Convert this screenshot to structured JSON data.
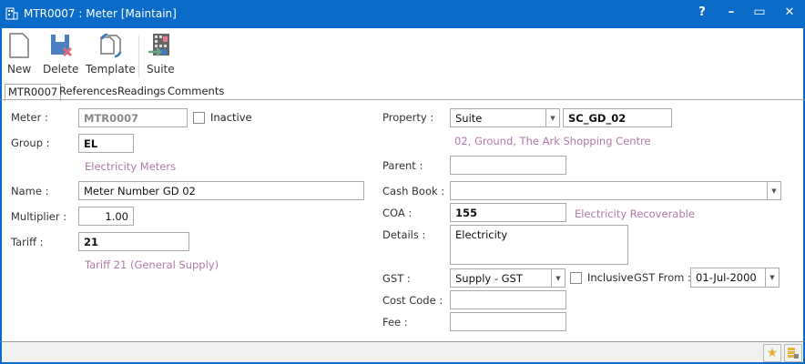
{
  "window": {
    "title": "MTR0007 : Meter [Maintain]",
    "help": "?",
    "minimize": "–",
    "maximize": "▭",
    "close": "✕",
    "accent": "#0a6bc8"
  },
  "toolbar": {
    "new": "New",
    "delete": "Delete",
    "template": "Template",
    "suite": "Suite"
  },
  "tabs": [
    "MTR0007",
    "References",
    "Readings",
    "Comments"
  ],
  "left": {
    "meter_label": "Meter :",
    "meter_value": "MTR0007",
    "inactive_label": "Inactive",
    "group_label": "Group :",
    "group_value": "EL",
    "group_desc": "Electricity Meters",
    "name_label": "Name :",
    "name_value": "Meter Number GD 02",
    "multiplier_label": "Multiplier :",
    "multiplier_value": "1.00",
    "tariff_label": "Tariff :",
    "tariff_value": "21",
    "tariff_desc": "Tariff 21 (General Supply)"
  },
  "right": {
    "property_label": "Property :",
    "property_type": "Suite",
    "property_code": "SC_GD_02",
    "property_desc": "02, Ground, The Ark Shopping Centre",
    "parent_label": "Parent :",
    "parent_value": "",
    "cashbook_label": "Cash Book :",
    "cashbook_value": "",
    "coa_label": "COA :",
    "coa_value": "155",
    "coa_desc": "Electricity Recoverable",
    "details_label": "Details :",
    "details_value": "Electricity",
    "gst_label": "GST :",
    "gst_value": "Supply - GST",
    "inclusive_label": "Inclusive",
    "gst_from_label": "GST From :",
    "gst_from_value": "01-Jul-2000",
    "costcode_label": "Cost Code :",
    "costcode_value": "",
    "fee_label": "Fee :",
    "fee_value": ""
  },
  "status": {
    "icons": [
      "star-icon",
      "layout-icon"
    ]
  }
}
